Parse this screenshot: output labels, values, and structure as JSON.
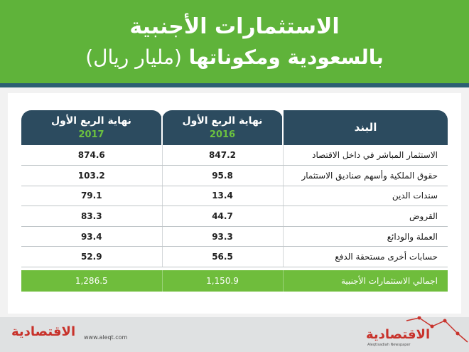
{
  "title": {
    "line1": "الاستثمارات الأجنبية",
    "line2_main": "بالسعودية ومكوناتها",
    "line2_unit": "(مليار ريال)"
  },
  "chart_data": {
    "type": "table",
    "columns": [
      {
        "label": "البند"
      },
      {
        "label": "نهاية الربع الأول",
        "year": "2016"
      },
      {
        "label": "نهاية الربع الأول",
        "year": "2017"
      }
    ],
    "rows": [
      {
        "item": "الاستثمار المباشر في داخل الاقتصاد",
        "v2016": "847.2",
        "v2017": "874.6"
      },
      {
        "item": "حقوق الملكية وأسهم صناديق الاستثمار",
        "v2016": "95.8",
        "v2017": "103.2"
      },
      {
        "item": "سندات الدين",
        "v2016": "13.4",
        "v2017": "79.1"
      },
      {
        "item": "القروض",
        "v2016": "44.7",
        "v2017": "83.3"
      },
      {
        "item": "العملة والودائع",
        "v2016": "93.3",
        "v2017": "93.4"
      },
      {
        "item": "حسابات أخرى مستحقة الدفع",
        "v2016": "56.5",
        "v2017": "52.9"
      }
    ],
    "total": {
      "item": "اجمالي الاستثمارات الأجنبية",
      "v2016": "1,150.9",
      "v2017": "1,286.5"
    }
  },
  "footer": {
    "logo_left": "الاقتصادية",
    "url": "www.aleqt.com",
    "logo_right": "الاقتصادية",
    "logo_right_sub": "Aleqtisadiah Newspaper"
  },
  "colors": {
    "header_green": "#5fb33a",
    "table_navy": "#2c4b5f",
    "total_green": "#6fbd3c",
    "logo_red": "#c8322b"
  }
}
